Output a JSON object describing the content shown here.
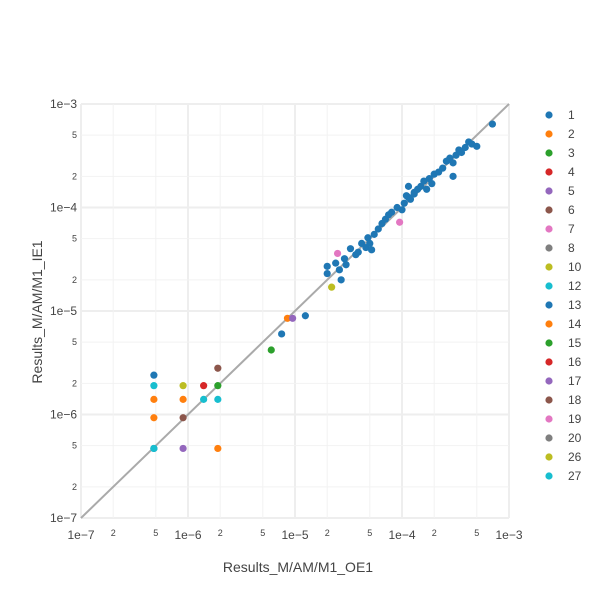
{
  "chart_data": {
    "type": "scatter",
    "xlabel": "Results_M/AM/M1_OE1",
    "ylabel": "Results_M/AM/M1_IE1",
    "xscale": "log",
    "yscale": "log",
    "xlim": [
      1e-07,
      0.001
    ],
    "ylim": [
      1e-07,
      0.001
    ],
    "grid": true,
    "legend_position": "right",
    "major_ticks": [
      {
        "value": 1e-07,
        "label": "1e−7"
      },
      {
        "value": 1e-06,
        "label": "1e−6"
      },
      {
        "value": 1e-05,
        "label": "1e−5"
      },
      {
        "value": 0.0001,
        "label": "1e−4"
      },
      {
        "value": 0.001,
        "label": "1e−3"
      }
    ],
    "minor_tick_multipliers": [
      2,
      5
    ],
    "reference_line": {
      "from": [
        1e-07,
        1e-07
      ],
      "to": [
        0.001,
        0.001
      ],
      "color": "#aaaaaa"
    },
    "series": [
      {
        "name": "1",
        "color": "#1f77b4",
        "points": []
      },
      {
        "name": "2",
        "color": "#ff7f0e",
        "points": []
      },
      {
        "name": "3",
        "color": "#2ca02c",
        "points": []
      },
      {
        "name": "4",
        "color": "#d62728",
        "points": []
      },
      {
        "name": "5",
        "color": "#9467bd",
        "points": []
      },
      {
        "name": "6",
        "color": "#8c564b",
        "points": []
      },
      {
        "name": "7",
        "color": "#e377c2",
        "points": []
      },
      {
        "name": "8",
        "color": "#7f7f7f",
        "points": []
      },
      {
        "name": "10",
        "color": "#bcbd22",
        "points": [
          [
            9e-07,
            1.9e-06
          ],
          [
            2.2e-05,
            1.7e-05
          ]
        ]
      },
      {
        "name": "12",
        "color": "#17becf",
        "points": [
          [
            4.8e-07,
            1.9e-06
          ],
          [
            1.4e-06,
            1.4e-06
          ],
          [
            1.9e-06,
            1.4e-06
          ]
        ]
      },
      {
        "name": "13",
        "color": "#1f77b4",
        "points": [
          [
            4.8e-07,
            2.4e-06
          ],
          [
            4.8e-07,
            4.7e-07
          ],
          [
            7.5e-06,
            6e-06
          ],
          [
            1.25e-05,
            9e-06
          ],
          [
            2e-05,
            2.7e-05
          ],
          [
            2e-05,
            2.3e-05
          ],
          [
            2.4e-05,
            2.9e-05
          ],
          [
            2.6e-05,
            2.5e-05
          ],
          [
            2.7e-05,
            2e-05
          ],
          [
            2.9e-05,
            3.2e-05
          ],
          [
            3e-05,
            2.8e-05
          ],
          [
            3.3e-05,
            4e-05
          ],
          [
            3.7e-05,
            3.5e-05
          ],
          [
            3.9e-05,
            3.7e-05
          ],
          [
            4.2e-05,
            4.5e-05
          ],
          [
            4.6e-05,
            4.1e-05
          ],
          [
            4.8e-05,
            5.1e-05
          ],
          [
            5e-05,
            4.5e-05
          ],
          [
            5.2e-05,
            3.9e-05
          ],
          [
            5.5e-05,
            5.5e-05
          ],
          [
            6e-05,
            6.2e-05
          ],
          [
            6.5e-05,
            7e-05
          ],
          [
            7e-05,
            7.7e-05
          ],
          [
            7.5e-05,
            8.5e-05
          ],
          [
            8e-05,
            9e-05
          ],
          [
            9e-05,
            0.0001
          ],
          [
            0.0001,
            9.5e-05
          ],
          [
            0.000105,
            0.00011
          ],
          [
            0.00011,
            0.00013
          ],
          [
            0.000115,
            0.000125
          ],
          [
            0.00012,
            0.00012
          ],
          [
            0.00013,
            0.00014
          ],
          [
            0.00014,
            0.00015
          ],
          [
            0.00015,
            0.00016
          ],
          [
            0.00016,
            0.00018
          ],
          [
            0.00017,
            0.00015
          ],
          [
            0.00018,
            0.00019
          ],
          [
            0.0002,
            0.00021
          ],
          [
            0.00022,
            0.00022
          ],
          [
            0.00024,
            0.00024
          ],
          [
            0.00026,
            0.00028
          ],
          [
            0.00028,
            0.0003
          ],
          [
            0.0003,
            0.00027
          ],
          [
            0.00032,
            0.00032
          ],
          [
            0.00034,
            0.00036
          ],
          [
            0.00036,
            0.00034
          ],
          [
            0.00039,
            0.00038
          ],
          [
            0.00042,
            0.00043
          ],
          [
            0.00045,
            0.00041
          ],
          [
            0.0005,
            0.00039
          ],
          [
            0.0007,
            0.00064
          ],
          [
            0.000115,
            0.00016
          ],
          [
            0.00013,
            0.000135
          ],
          [
            0.0003,
            0.0002
          ],
          [
            0.00019,
            0.00017
          ]
        ]
      },
      {
        "name": "14",
        "color": "#ff7f0e",
        "points": [
          [
            4.8e-07,
            1.4e-06
          ],
          [
            4.8e-07,
            9.3e-07
          ],
          [
            9e-07,
            1.4e-06
          ],
          [
            1.9e-06,
            4.7e-07
          ],
          [
            8.5e-06,
            8.5e-06
          ]
        ]
      },
      {
        "name": "15",
        "color": "#2ca02c",
        "points": [
          [
            1.9e-06,
            1.9e-06
          ],
          [
            6e-06,
            4.2e-06
          ]
        ]
      },
      {
        "name": "16",
        "color": "#d62728",
        "points": [
          [
            1.4e-06,
            1.9e-06
          ]
        ]
      },
      {
        "name": "17",
        "color": "#9467bd",
        "points": [
          [
            9e-07,
            4.7e-07
          ],
          [
            9.5e-06,
            8.5e-06
          ]
        ]
      },
      {
        "name": "18",
        "color": "#8c564b",
        "points": [
          [
            9e-07,
            9.3e-07
          ],
          [
            1.9e-06,
            2.8e-06
          ]
        ]
      },
      {
        "name": "19",
        "color": "#e377c2",
        "points": [
          [
            2.5e-05,
            3.6e-05
          ],
          [
            9.5e-05,
            7.2e-05
          ]
        ]
      },
      {
        "name": "20",
        "color": "#7f7f7f",
        "points": []
      },
      {
        "name": "26",
        "color": "#bcbd22",
        "points": []
      },
      {
        "name": "27",
        "color": "#17becf",
        "points": [
          [
            4.8e-07,
            4.7e-07
          ]
        ]
      }
    ]
  }
}
